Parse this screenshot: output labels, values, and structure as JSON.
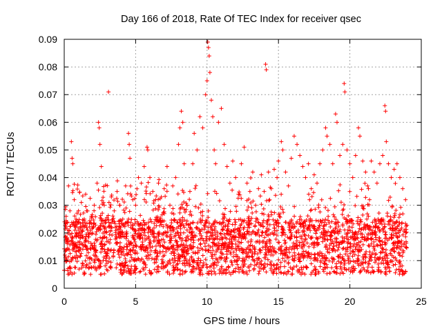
{
  "chart_data": {
    "type": "scatter",
    "title": "Day 166 of 2018, Rate Of TEC Index for receiver qsec",
    "xlabel": "GPS time / hours",
    "ylabel": "ROTI / TECUs",
    "xlim": [
      0,
      25
    ],
    "ylim": [
      0,
      0.09
    ],
    "xticks": [
      0,
      5,
      10,
      15,
      20,
      25
    ],
    "xtick_labels": [
      "0",
      "5",
      "10",
      "15",
      "20",
      "25"
    ],
    "yticks": [
      0,
      0.01,
      0.02,
      0.03,
      0.04,
      0.05,
      0.06,
      0.07,
      0.08,
      0.09
    ],
    "ytick_labels": [
      "0",
      "0.01",
      "0.02",
      "0.03",
      "0.04",
      "0.05",
      "0.06",
      "0.07",
      "0.08",
      "0.09"
    ],
    "grid": true,
    "marker": "+",
    "color": "#ff0000",
    "series": [
      {
        "name": "ROTI",
        "points": [
          [
            0.05,
            0.012
          ],
          [
            0.2,
            0.018
          ],
          [
            0.3,
            0.037
          ],
          [
            0.4,
            0.028
          ],
          [
            0.5,
            0.053
          ],
          [
            0.55,
            0.047
          ],
          [
            0.6,
            0.045
          ],
          [
            0.7,
            0.032
          ],
          [
            0.8,
            0.022
          ],
          [
            0.9,
            0.015
          ],
          [
            1.0,
            0.028
          ],
          [
            1.2,
            0.031
          ],
          [
            1.4,
            0.025
          ],
          [
            1.5,
            0.034
          ],
          [
            1.7,
            0.02
          ],
          [
            1.9,
            0.026
          ],
          [
            2.1,
            0.03
          ],
          [
            2.3,
            0.038
          ],
          [
            2.4,
            0.06
          ],
          [
            2.45,
            0.058
          ],
          [
            2.5,
            0.052
          ],
          [
            2.6,
            0.044
          ],
          [
            2.8,
            0.03
          ],
          [
            3.0,
            0.025
          ],
          [
            3.1,
            0.071
          ],
          [
            3.3,
            0.033
          ],
          [
            3.5,
            0.028
          ],
          [
            3.7,
            0.035
          ],
          [
            3.9,
            0.03
          ],
          [
            4.1,
            0.025
          ],
          [
            4.3,
            0.037
          ],
          [
            4.5,
            0.056
          ],
          [
            4.55,
            0.052
          ],
          [
            4.6,
            0.047
          ],
          [
            4.8,
            0.032
          ],
          [
            5.0,
            0.03
          ],
          [
            5.2,
            0.04
          ],
          [
            5.4,
            0.038
          ],
          [
            5.6,
            0.044
          ],
          [
            5.8,
            0.051
          ],
          [
            5.85,
            0.05
          ],
          [
            6.0,
            0.04
          ],
          [
            6.2,
            0.035
          ],
          [
            6.4,
            0.032
          ],
          [
            6.6,
            0.038
          ],
          [
            6.8,
            0.033
          ],
          [
            7.0,
            0.036
          ],
          [
            7.2,
            0.044
          ],
          [
            7.4,
            0.03
          ],
          [
            7.6,
            0.037
          ],
          [
            7.8,
            0.04
          ],
          [
            8.0,
            0.052
          ],
          [
            8.1,
            0.058
          ],
          [
            8.2,
            0.064
          ],
          [
            8.3,
            0.06
          ],
          [
            8.4,
            0.045
          ],
          [
            8.6,
            0.03
          ],
          [
            8.8,
            0.035
          ],
          [
            9.0,
            0.045
          ],
          [
            9.1,
            0.056
          ],
          [
            9.3,
            0.05
          ],
          [
            9.5,
            0.062
          ],
          [
            9.7,
            0.058
          ],
          [
            9.9,
            0.07
          ],
          [
            10.0,
            0.075
          ],
          [
            10.05,
            0.089
          ],
          [
            10.1,
            0.087
          ],
          [
            10.15,
            0.084
          ],
          [
            10.2,
            0.078
          ],
          [
            10.3,
            0.068
          ],
          [
            10.4,
            0.062
          ],
          [
            10.5,
            0.05
          ],
          [
            10.6,
            0.045
          ],
          [
            10.8,
            0.06
          ],
          [
            11.0,
            0.065
          ],
          [
            11.2,
            0.052
          ],
          [
            11.4,
            0.044
          ],
          [
            11.6,
            0.038
          ],
          [
            11.8,
            0.046
          ],
          [
            12.0,
            0.04
          ],
          [
            12.2,
            0.034
          ],
          [
            12.4,
            0.045
          ],
          [
            12.6,
            0.051
          ],
          [
            12.8,
            0.038
          ],
          [
            13.0,
            0.035
          ],
          [
            13.2,
            0.042
          ],
          [
            13.4,
            0.03
          ],
          [
            13.6,
            0.036
          ],
          [
            13.8,
            0.041
          ],
          [
            14.0,
            0.035
          ],
          [
            14.1,
            0.081
          ],
          [
            14.15,
            0.079
          ],
          [
            14.3,
            0.042
          ],
          [
            14.5,
            0.036
          ],
          [
            14.7,
            0.043
          ],
          [
            14.9,
            0.04
          ],
          [
            15.0,
            0.046
          ],
          [
            15.2,
            0.053
          ],
          [
            15.3,
            0.05
          ],
          [
            15.5,
            0.042
          ],
          [
            15.7,
            0.037
          ],
          [
            15.9,
            0.047
          ],
          [
            16.1,
            0.055
          ],
          [
            16.3,
            0.052
          ],
          [
            16.5,
            0.048
          ],
          [
            16.7,
            0.044
          ],
          [
            16.9,
            0.04
          ],
          [
            17.1,
            0.045
          ],
          [
            17.3,
            0.036
          ],
          [
            17.5,
            0.041
          ],
          [
            17.7,
            0.038
          ],
          [
            17.9,
            0.045
          ],
          [
            18.1,
            0.05
          ],
          [
            18.3,
            0.058
          ],
          [
            18.4,
            0.055
          ],
          [
            18.6,
            0.052
          ],
          [
            18.8,
            0.045
          ],
          [
            19.0,
            0.063
          ],
          [
            19.1,
            0.06
          ],
          [
            19.3,
            0.048
          ],
          [
            19.5,
            0.052
          ],
          [
            19.6,
            0.074
          ],
          [
            19.65,
            0.071
          ],
          [
            19.8,
            0.05
          ],
          [
            20.0,
            0.045
          ],
          [
            20.2,
            0.04
          ],
          [
            20.4,
            0.048
          ],
          [
            20.6,
            0.058
          ],
          [
            20.7,
            0.055
          ],
          [
            20.9,
            0.046
          ],
          [
            21.1,
            0.042
          ],
          [
            21.3,
            0.036
          ],
          [
            21.5,
            0.046
          ],
          [
            21.7,
            0.042
          ],
          [
            21.9,
            0.038
          ],
          [
            22.1,
            0.045
          ],
          [
            22.3,
            0.048
          ],
          [
            22.45,
            0.066
          ],
          [
            22.5,
            0.064
          ],
          [
            22.55,
            0.053
          ],
          [
            22.7,
            0.045
          ],
          [
            22.9,
            0.04
          ],
          [
            23.1,
            0.043
          ],
          [
            23.3,
            0.045
          ],
          [
            23.5,
            0.04
          ],
          [
            23.7,
            0.036
          ],
          [
            23.9,
            0.032
          ]
        ]
      }
    ]
  }
}
